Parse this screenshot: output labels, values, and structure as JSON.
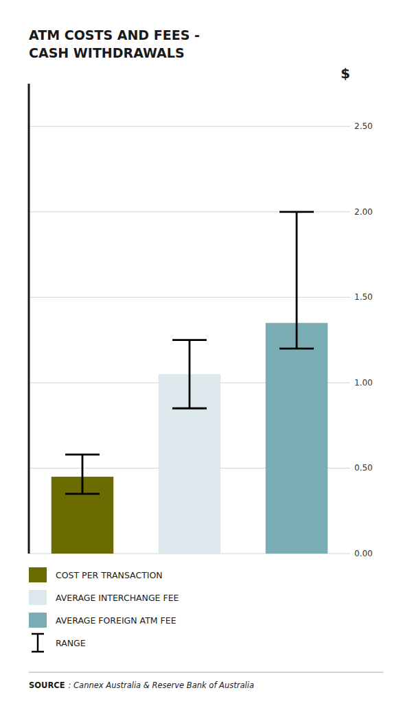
{
  "chart_data": {
    "type": "bar",
    "title": "ATM COSTS AND FEES -",
    "subtitle": "CASH WITHDRAWALS",
    "ylabel": "$",
    "categories": [
      "COST PER TRANSACTION",
      "AVERAGE INTERCHANGE FEE",
      "AVERAGE FOREIGN ATM FEE"
    ],
    "values": [
      0.45,
      1.05,
      1.35
    ],
    "colors": [
      "#6b6b00",
      "#dce8ec",
      "#7aacb4"
    ],
    "error_low": [
      0.35,
      0.85,
      1.2
    ],
    "error_high": [
      0.58,
      1.25,
      2.0
    ],
    "error_name": "RANGE",
    "ylim": [
      0,
      2.75
    ],
    "yticks": [
      {
        "value": 0.0,
        "label": "0.00"
      },
      {
        "value": 0.5,
        "label": "0.50"
      },
      {
        "value": 1.0,
        "label": "1.00"
      },
      {
        "value": 1.5,
        "label": "1.50"
      },
      {
        "value": 2.0,
        "label": "2.00"
      },
      {
        "value": 2.5,
        "label": "2.50"
      }
    ],
    "grid": true,
    "legend": "bottom",
    "tick_labels": "y",
    "annotations": [
      "SOURCE",
      ": Cannex Australia & Reserve Bank of Australia"
    ]
  }
}
